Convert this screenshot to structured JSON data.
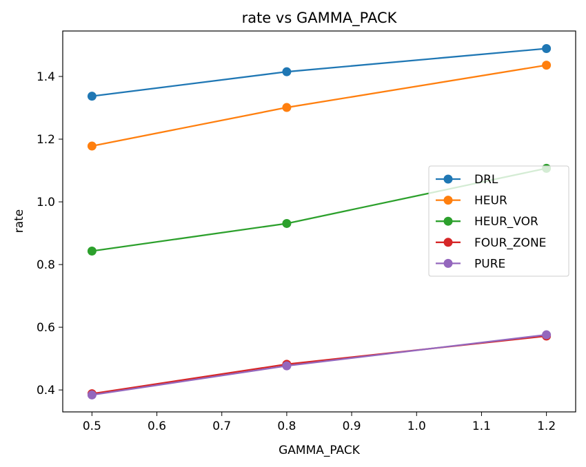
{
  "chart_data": {
    "type": "line",
    "title": "rate vs GAMMA_PACK",
    "xlabel": "GAMMA_PACK",
    "ylabel": "rate",
    "x": [
      0.5,
      0.8,
      1.2
    ],
    "xlim": [
      0.455,
      1.245
    ],
    "ylim": [
      0.33,
      1.545
    ],
    "xticks": [
      0.5,
      0.6,
      0.7,
      0.8,
      0.9,
      1.0,
      1.1,
      1.2
    ],
    "xtick_labels": [
      "0.5",
      "0.6",
      "0.7",
      "0.8",
      "0.9",
      "1.0",
      "1.1",
      "1.2"
    ],
    "yticks": [
      0.4,
      0.6,
      0.8,
      1.0,
      1.2,
      1.4
    ],
    "ytick_labels": [
      "0.4",
      "0.6",
      "0.8",
      "1.0",
      "1.2",
      "1.4"
    ],
    "grid": false,
    "legend_position": "center-right",
    "series": [
      {
        "name": "DRL",
        "color": "#1f77b4",
        "values": [
          1.337,
          1.415,
          1.489
        ]
      },
      {
        "name": "HEUR",
        "color": "#ff7f0e",
        "values": [
          1.178,
          1.301,
          1.436
        ]
      },
      {
        "name": "HEUR_VOR",
        "color": "#2ca02c",
        "values": [
          0.843,
          0.931,
          1.107
        ]
      },
      {
        "name": "FOUR_ZONE",
        "color": "#d62728",
        "values": [
          0.388,
          0.482,
          0.572
        ]
      },
      {
        "name": "PURE",
        "color": "#9467bd",
        "values": [
          0.384,
          0.477,
          0.576
        ]
      }
    ]
  }
}
